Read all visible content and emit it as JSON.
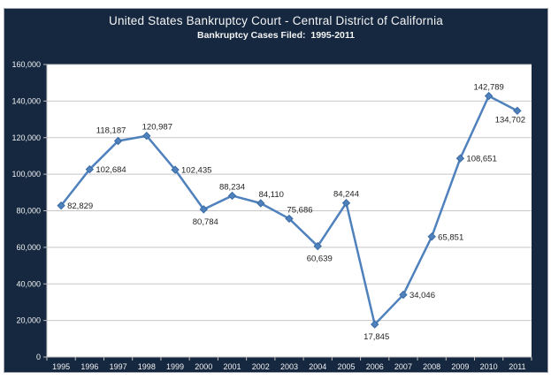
{
  "chart": {
    "title": "United States Bankruptcy Court - Central District of California",
    "subtitle": "Bankruptcy Cases Filed:  1995-2011",
    "colors": {
      "frame_background": "#152840",
      "frame_border": "#a9a9b4",
      "plot_background": "#ffffff",
      "gridline": "#c8c8c8",
      "axis_line": "#bfbfbf",
      "axis_text": "#f2f2f2",
      "series_line": "#4f81bd",
      "marker_fill": "#4f81bd",
      "marker_edge": "#3a6ba5",
      "data_label_text": "#1f1f1f"
    }
  },
  "chart_data": {
    "type": "line",
    "title": "United States Bankruptcy Court - Central District of California",
    "subtitle": "Bankruptcy Cases Filed:  1995-2011",
    "marker": "diamond",
    "grid": "horizontal",
    "legend": "none",
    "x": [
      "1995",
      "1996",
      "1997",
      "1998",
      "1999",
      "2000",
      "2001",
      "2002",
      "2003",
      "2004",
      "2005",
      "2006",
      "2007",
      "2008",
      "2009",
      "2010",
      "2011"
    ],
    "values": [
      82829,
      102684,
      118187,
      120987,
      102435,
      80784,
      88234,
      84110,
      75686,
      60639,
      84244,
      17845,
      34046,
      65851,
      108651,
      142789,
      134702
    ],
    "point_labels": [
      "82,829",
      "102,684",
      "118,187",
      "120,987",
      "102,435",
      "80,784",
      "88,234",
      "84,110",
      "75,686",
      "60,639",
      "84,244",
      "17,845",
      "34,046",
      "65,851",
      "108,651",
      "142,789",
      "134,702"
    ],
    "label_positions": [
      "right",
      "right",
      "above-left",
      "above-right",
      "right",
      "below",
      "above",
      "above-right",
      "above-right",
      "below",
      "above",
      "below",
      "right",
      "right",
      "right",
      "above",
      "below-left"
    ],
    "ylim": [
      0,
      160000
    ],
    "ytick_values": [
      0,
      20000,
      40000,
      60000,
      80000,
      100000,
      120000,
      140000,
      160000
    ],
    "ytick_labels": [
      "0",
      "20,000",
      "40,000",
      "60,000",
      "80,000",
      "100,000",
      "120,000",
      "140,000",
      "160,000"
    ]
  }
}
